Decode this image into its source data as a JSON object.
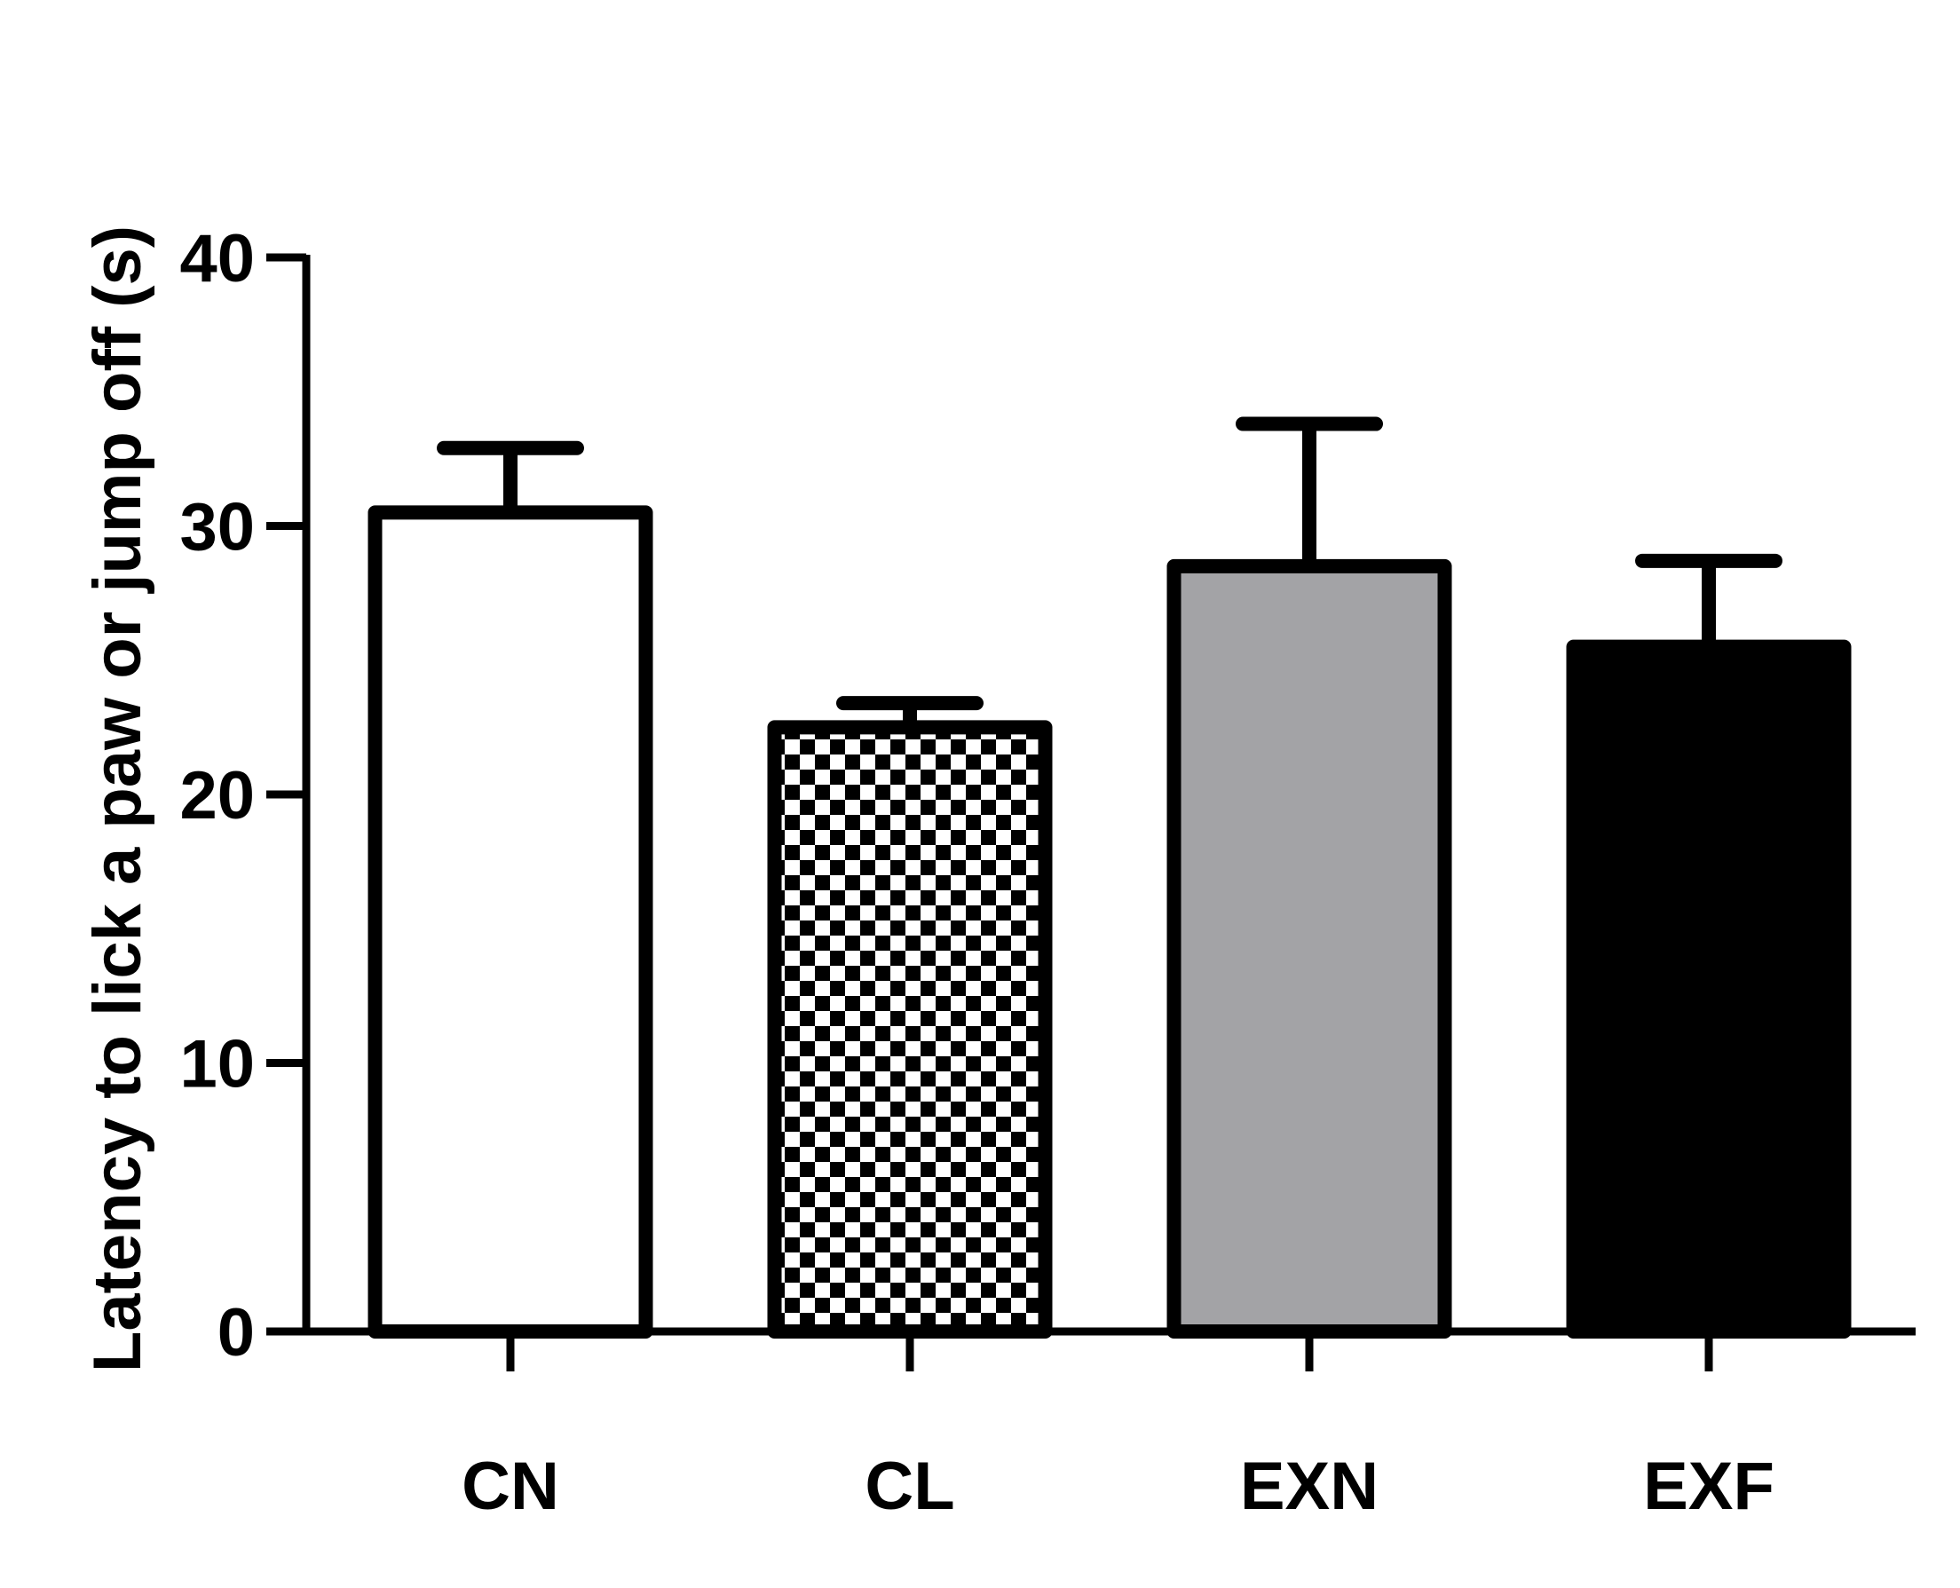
{
  "chart_data": {
    "type": "bar",
    "title": "",
    "xlabel": "",
    "ylabel": "Latency to lick a paw or jump off (s)",
    "categories": [
      "CN",
      "CL",
      "EXN",
      "EXF"
    ],
    "values": [
      30.5,
      22.5,
      28.5,
      25.5
    ],
    "error_upper": [
      32.9,
      23.4,
      33.8,
      28.7
    ],
    "ylim": [
      0,
      40
    ],
    "yticks": [
      0,
      10,
      20,
      30,
      40
    ],
    "ytick_labels": [
      "0",
      "10",
      "20",
      "30",
      "40"
    ],
    "bar_fills": [
      "white",
      "checkerboard",
      "#a3a3a6",
      "#000000"
    ],
    "grid": false,
    "legend": "none"
  }
}
